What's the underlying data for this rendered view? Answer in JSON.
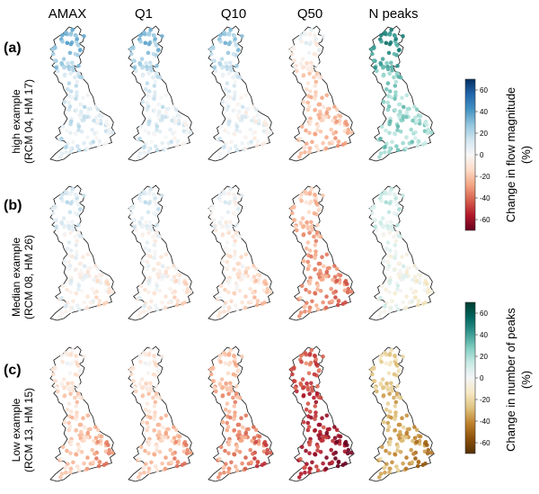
{
  "chart_data": {
    "type": "map-grid",
    "columns": [
      "AMAX",
      "Q1",
      "Q10",
      "Q50",
      "N peaks"
    ],
    "rows": [
      {
        "tag": "(a)",
        "label_line1": "high example",
        "label_line2": "(RCM 04, HM 17)",
        "median_change_pct": {
          "AMAX": 12,
          "Q1": 10,
          "Q10": 6,
          "Q50": -18,
          "N peaks": 25
        },
        "pattern": {
          "north_bias": 25,
          "southeast_bias": -10
        }
      },
      {
        "tag": "(b)",
        "label_line1": "Median example",
        "label_line2": "(RCM 08, HM 26)",
        "median_change_pct": {
          "AMAX": 2,
          "Q1": 0,
          "Q10": -6,
          "Q50": -28,
          "N peaks": 2
        },
        "pattern": {
          "north_bias": 12,
          "southeast_bias": -22
        }
      },
      {
        "tag": "(c)",
        "label_line1": "Low example",
        "label_line2": "(RCM 13, HM 15)",
        "median_change_pct": {
          "AMAX": -15,
          "Q1": -15,
          "Q10": -28,
          "Q50": -52,
          "N peaks": -30
        },
        "pattern": {
          "north_bias": 12,
          "southeast_bias": -35
        }
      }
    ],
    "colorbars": [
      {
        "label_line1": "Change in flow magnitude",
        "label_line2": "(%)",
        "colormap": "red-white-blue",
        "range": [
          -70,
          70
        ],
        "ticks": [
          "60",
          "40",
          "20",
          "0",
          "-20",
          "-40",
          "-60"
        ]
      },
      {
        "label_line1": "Change in number of peaks",
        "label_line2": "(%)",
        "colormap": "brown-white-teal",
        "range": [
          -70,
          70
        ],
        "ticks": [
          "60",
          "40",
          "20",
          "0",
          "-20",
          "-40",
          "-60"
        ]
      }
    ],
    "colors": {
      "flow": [
        "#67001f",
        "#b2182b",
        "#d6604d",
        "#f4a582",
        "#fddbc7",
        "#f7f7f7",
        "#d1e5f0",
        "#92c5de",
        "#4393c3",
        "#2166ac",
        "#053061"
      ],
      "peaks": [
        "#543005",
        "#8c510a",
        "#bf812d",
        "#dfc27d",
        "#f6e8c3",
        "#f5f5f5",
        "#c7eae5",
        "#80cdc1",
        "#35978f",
        "#01665e",
        "#003c30"
      ]
    }
  }
}
